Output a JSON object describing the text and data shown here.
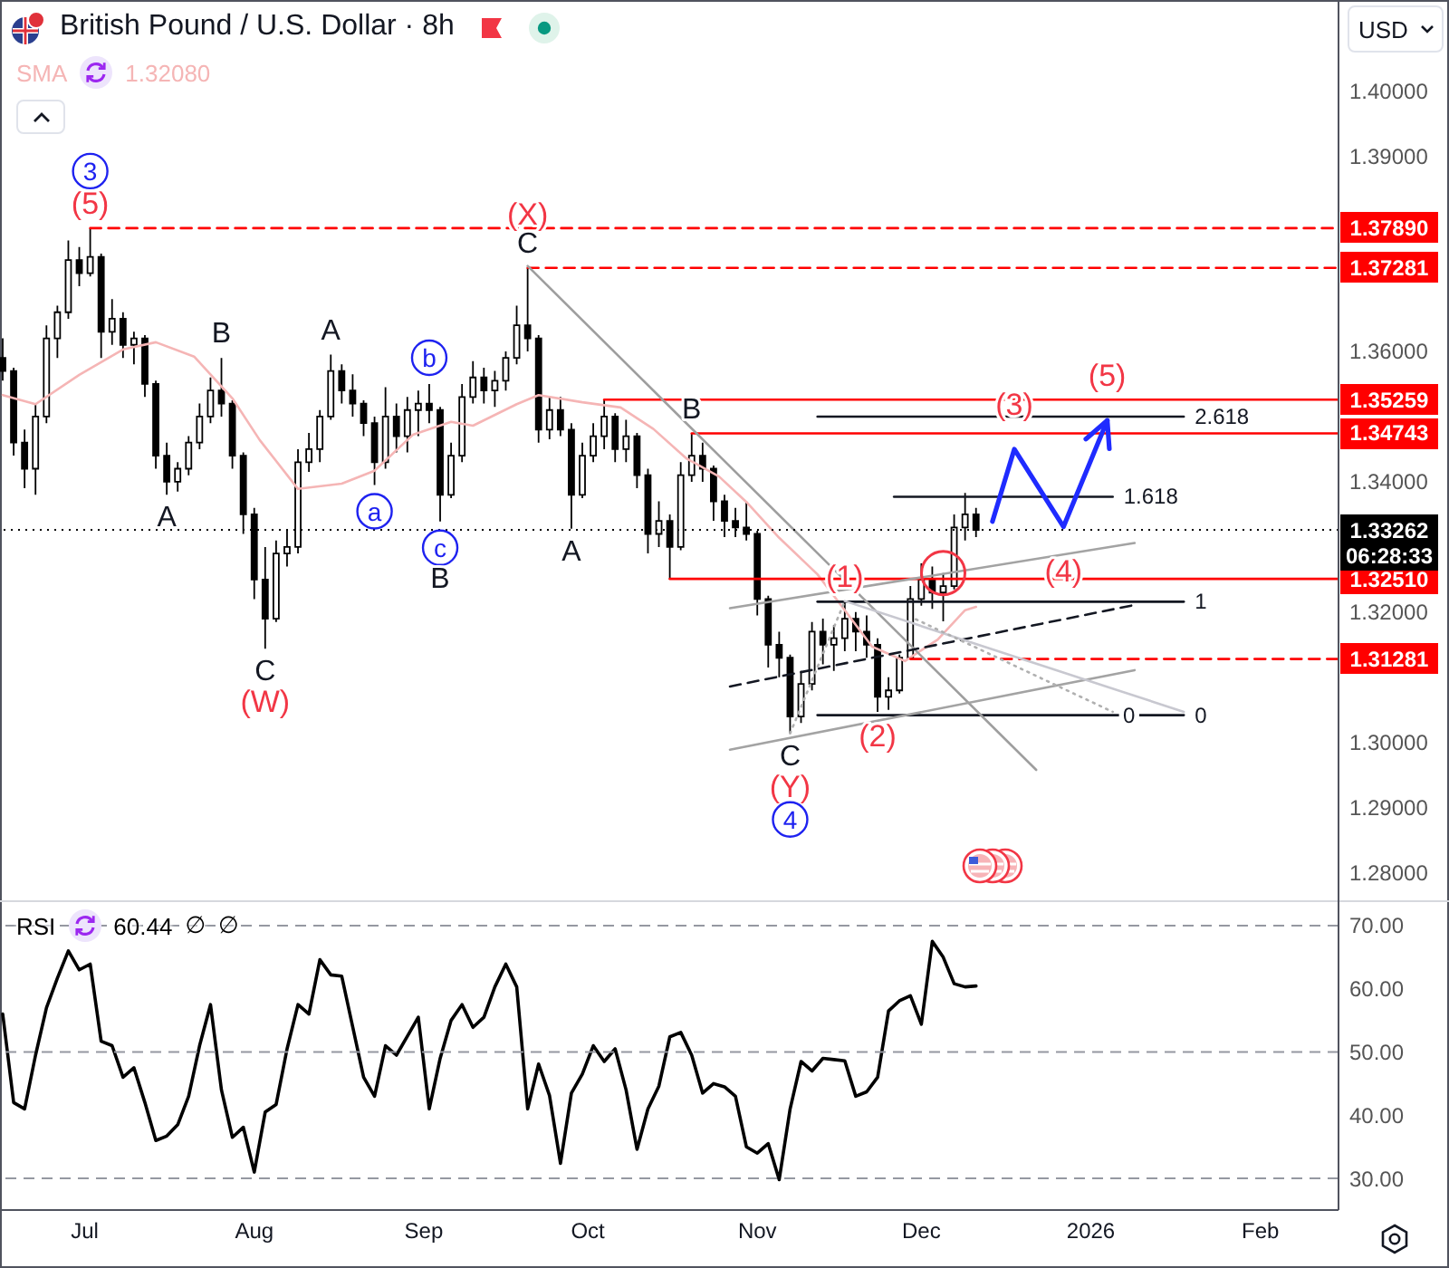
{
  "chart_data": [
    {
      "type": "candlestick",
      "title": "British Pound / U.S. Dollar · 8h",
      "ylabel": "USD",
      "color": "#000000",
      "x": [
        "2025-06-16",
        "2025-06-18",
        "2025-06-20",
        "2025-06-22",
        "2025-06-24",
        "2025-06-26",
        "2025-06-28",
        "2025-06-30",
        "2025-07-02",
        "2025-07-04",
        "2025-07-06",
        "2025-07-08",
        "2025-07-10",
        "2025-07-12",
        "2025-07-14",
        "2025-07-16",
        "2025-07-18",
        "2025-07-20",
        "2025-07-22",
        "2025-07-24",
        "2025-07-26",
        "2025-07-28",
        "2025-07-30",
        "2025-08-01",
        "2025-08-03",
        "2025-08-05",
        "2025-08-07",
        "2025-08-09",
        "2025-08-11",
        "2025-08-13",
        "2025-08-15",
        "2025-08-17",
        "2025-08-19",
        "2025-08-21",
        "2025-08-23",
        "2025-08-25",
        "2025-08-27",
        "2025-08-29",
        "2025-08-31",
        "2025-09-02",
        "2025-09-04",
        "2025-09-06",
        "2025-09-08",
        "2025-09-10",
        "2025-09-12",
        "2025-09-14",
        "2025-09-16",
        "2025-09-18",
        "2025-09-20",
        "2025-09-22",
        "2025-09-24",
        "2025-09-26",
        "2025-09-28",
        "2025-09-30",
        "2025-10-02",
        "2025-10-04",
        "2025-10-06",
        "2025-10-08",
        "2025-10-10",
        "2025-10-12",
        "2025-10-14",
        "2025-10-16",
        "2025-10-18",
        "2025-10-20",
        "2025-10-22",
        "2025-10-24",
        "2025-10-26",
        "2025-10-28",
        "2025-10-30",
        "2025-11-01",
        "2025-11-03",
        "2025-11-05",
        "2025-11-07",
        "2025-11-09",
        "2025-11-11",
        "2025-11-13",
        "2025-11-15",
        "2025-11-17",
        "2025-11-19",
        "2025-11-21",
        "2025-11-23",
        "2025-11-25",
        "2025-11-27",
        "2025-11-29",
        "2025-12-01",
        "2025-12-03",
        "2025-12-05",
        "2025-12-07",
        "2025-12-09",
        "2025-12-11"
      ],
      "ohlc": [
        [
          1.359,
          1.362,
          1.3555,
          1.357
        ],
        [
          1.357,
          1.3575,
          1.344,
          1.346
        ],
        [
          1.346,
          1.348,
          1.339,
          1.342
        ],
        [
          1.342,
          1.352,
          1.338,
          1.35
        ],
        [
          1.35,
          1.364,
          1.349,
          1.362
        ],
        [
          1.362,
          1.367,
          1.359,
          1.366
        ],
        [
          1.366,
          1.377,
          1.365,
          1.374
        ],
        [
          1.374,
          1.376,
          1.37,
          1.372
        ],
        [
          1.372,
          1.3789,
          1.3715,
          1.3745
        ],
        [
          1.3745,
          1.375,
          1.359,
          1.363
        ],
        [
          1.363,
          1.368,
          1.361,
          1.365
        ],
        [
          1.365,
          1.366,
          1.359,
          1.361
        ],
        [
          1.361,
          1.363,
          1.358,
          1.362
        ],
        [
          1.362,
          1.3625,
          1.353,
          1.355
        ],
        [
          1.355,
          1.3555,
          1.342,
          1.344
        ],
        [
          1.344,
          1.346,
          1.338,
          1.34
        ],
        [
          1.34,
          1.343,
          1.3385,
          1.342
        ],
        [
          1.342,
          1.347,
          1.341,
          1.346
        ],
        [
          1.346,
          1.352,
          1.345,
          1.35
        ],
        [
          1.35,
          1.356,
          1.349,
          1.354
        ],
        [
          1.354,
          1.359,
          1.35,
          1.352
        ],
        [
          1.352,
          1.3525,
          1.342,
          1.344
        ],
        [
          1.344,
          1.3445,
          1.332,
          1.335
        ],
        [
          1.335,
          1.336,
          1.322,
          1.325
        ],
        [
          1.325,
          1.33,
          1.3144,
          1.319
        ],
        [
          1.319,
          1.331,
          1.3185,
          1.329
        ],
        [
          1.329,
          1.3325,
          1.327,
          1.33
        ],
        [
          1.33,
          1.345,
          1.329,
          1.343
        ],
        [
          1.343,
          1.3475,
          1.3415,
          1.345
        ],
        [
          1.345,
          1.351,
          1.343,
          1.35
        ],
        [
          1.35,
          1.3595,
          1.3495,
          1.357
        ],
        [
          1.357,
          1.358,
          1.352,
          1.354
        ],
        [
          1.354,
          1.3565,
          1.35,
          1.352
        ],
        [
          1.352,
          1.3525,
          1.347,
          1.349
        ],
        [
          1.349,
          1.35,
          1.3395,
          1.343
        ],
        [
          1.343,
          1.3545,
          1.342,
          1.35
        ],
        [
          1.35,
          1.352,
          1.3445,
          1.347
        ],
        [
          1.347,
          1.353,
          1.3445,
          1.351
        ],
        [
          1.351,
          1.354,
          1.347,
          1.352
        ],
        [
          1.352,
          1.355,
          1.349,
          1.351
        ],
        [
          1.351,
          1.3515,
          1.3339,
          1.338
        ],
        [
          1.338,
          1.346,
          1.3375,
          1.344
        ],
        [
          1.344,
          1.355,
          1.343,
          1.353
        ],
        [
          1.353,
          1.3585,
          1.352,
          1.356
        ],
        [
          1.356,
          1.3575,
          1.352,
          1.354
        ],
        [
          1.354,
          1.357,
          1.3515,
          1.3555
        ],
        [
          1.3555,
          1.36,
          1.354,
          1.359
        ],
        [
          1.359,
          1.367,
          1.358,
          1.364
        ],
        [
          1.364,
          1.3728,
          1.36,
          1.362
        ],
        [
          1.362,
          1.3625,
          1.346,
          1.348
        ],
        [
          1.348,
          1.353,
          1.3465,
          1.351
        ],
        [
          1.351,
          1.353,
          1.347,
          1.348
        ],
        [
          1.348,
          1.349,
          1.3328,
          1.338
        ],
        [
          1.338,
          1.346,
          1.3375,
          1.344
        ],
        [
          1.344,
          1.349,
          1.343,
          1.347
        ],
        [
          1.347,
          1.3526,
          1.345,
          1.35
        ],
        [
          1.35,
          1.3505,
          1.343,
          1.345
        ],
        [
          1.345,
          1.3495,
          1.343,
          1.347
        ],
        [
          1.347,
          1.3475,
          1.339,
          1.341
        ],
        [
          1.341,
          1.342,
          1.329,
          1.332
        ],
        [
          1.332,
          1.337,
          1.33,
          1.334
        ],
        [
          1.334,
          1.335,
          1.3251,
          1.33
        ],
        [
          1.33,
          1.343,
          1.3295,
          1.341
        ],
        [
          1.341,
          1.3474,
          1.34,
          1.344
        ],
        [
          1.344,
          1.346,
          1.34,
          1.342
        ],
        [
          1.342,
          1.3425,
          1.334,
          1.337
        ],
        [
          1.337,
          1.338,
          1.3315,
          1.334
        ],
        [
          1.334,
          1.336,
          1.3315,
          1.333
        ],
        [
          1.333,
          1.337,
          1.331,
          1.332
        ],
        [
          1.332,
          1.3325,
          1.3195,
          1.322
        ],
        [
          1.322,
          1.3225,
          1.3115,
          1.315
        ],
        [
          1.315,
          1.317,
          1.31,
          1.313
        ],
        [
          1.313,
          1.3135,
          1.3014,
          1.304
        ],
        [
          1.304,
          1.311,
          1.303,
          1.309
        ],
        [
          1.309,
          1.3185,
          1.308,
          1.317
        ],
        [
          1.317,
          1.319,
          1.312,
          1.315
        ],
        [
          1.315,
          1.318,
          1.311,
          1.316
        ],
        [
          1.316,
          1.3217,
          1.314,
          1.319
        ],
        [
          1.319,
          1.32,
          1.314,
          1.317
        ],
        [
          1.317,
          1.3195,
          1.313,
          1.315
        ],
        [
          1.315,
          1.316,
          1.3047,
          1.307
        ],
        [
          1.307,
          1.31,
          1.305,
          1.308
        ],
        [
          1.308,
          1.3135,
          1.3075,
          1.313
        ],
        [
          1.313,
          1.324,
          1.3128,
          1.322
        ],
        [
          1.322,
          1.3275,
          1.321,
          1.325
        ],
        [
          1.325,
          1.327,
          1.3205,
          1.323
        ],
        [
          1.323,
          1.326,
          1.3186,
          1.324
        ],
        [
          1.324,
          1.335,
          1.3235,
          1.333
        ],
        [
          1.333,
          1.3383,
          1.331,
          1.335
        ],
        [
          1.335,
          1.336,
          1.3315,
          1.33262
        ]
      ],
      "series": [
        {
          "type": "line",
          "name": "SMA",
          "color": "#f5b5b5",
          "x": [
            "2025-06-16",
            "2025-06-22",
            "2025-06-30",
            "2025-07-08",
            "2025-07-14",
            "2025-07-21",
            "2025-07-28",
            "2025-08-02",
            "2025-08-09",
            "2025-08-17",
            "2025-08-23",
            "2025-08-30",
            "2025-09-06",
            "2025-09-10",
            "2025-09-18",
            "2025-09-22",
            "2025-09-30",
            "2025-10-07",
            "2025-10-13",
            "2025-10-19",
            "2025-10-25",
            "2025-10-30",
            "2025-11-05",
            "2025-11-12",
            "2025-11-17",
            "2025-11-22",
            "2025-11-28",
            "2025-12-04",
            "2025-12-09",
            "2025-12-11"
          ],
          "values": [
            1.3533,
            1.3519,
            1.3564,
            1.3603,
            1.3614,
            1.3592,
            1.3528,
            1.3464,
            1.3389,
            1.3397,
            1.3417,
            1.3472,
            1.3492,
            1.3486,
            1.3519,
            1.3533,
            1.3522,
            1.3514,
            1.3481,
            1.3436,
            1.3408,
            1.3369,
            1.3314,
            1.3258,
            1.3203,
            1.3147,
            1.3125,
            1.3158,
            1.3203,
            1.3208
          ]
        },
        {
          "type": "line",
          "color": "#ff0000",
          "line_style": "dashed",
          "x": [
            "2025-07-02",
            "2026-02-15T07:00"
          ],
          "values": [
            1.3789,
            1.3789
          ],
          "value_labels": [
            null,
            "1.37890"
          ]
        },
        {
          "type": "line",
          "color": "#ff0000",
          "line_style": "dashed",
          "x": [
            "2025-09-20",
            "2026-02-15T07:00"
          ],
          "values": [
            1.37281,
            1.37281
          ],
          "value_labels": [
            null,
            "1.37281"
          ]
        },
        {
          "type": "line",
          "color": "#ff0000",
          "x": [
            "2025-10-04",
            "2026-02-15T07:00"
          ],
          "values": [
            1.35259,
            1.35259
          ],
          "value_labels": [
            null,
            "1.35259"
          ]
        },
        {
          "type": "line",
          "color": "#ff0000",
          "x": [
            "2025-10-20",
            "2026-02-15T07:00"
          ],
          "values": [
            1.34743,
            1.34743
          ],
          "value_labels": [
            null,
            "1.34743"
          ]
        },
        {
          "type": "line",
          "color": "#ff0000",
          "x": [
            "2025-10-16",
            "2026-02-15T07:00"
          ],
          "values": [
            1.3251,
            1.3251
          ],
          "value_labels": [
            null,
            "1.32510"
          ]
        },
        {
          "type": "line",
          "color": "#ff0000",
          "line_style": "dashed",
          "x": [
            "2025-11-29",
            "2026-02-15T07:00"
          ],
          "values": [
            1.31281,
            1.31281
          ],
          "value_labels": [
            null,
            "1.31281"
          ]
        },
        {
          "type": "line",
          "color": "#131722",
          "x": [
            "2025-11-12",
            "2026-01-18"
          ],
          "values": [
            1.35,
            1.35
          ]
        },
        {
          "type": "line",
          "color": "#131722",
          "x": [
            "2025-11-26",
            "2026-01-05"
          ],
          "values": [
            1.3377,
            1.3377
          ]
        },
        {
          "type": "line",
          "color": "#131722",
          "x": [
            "2025-11-12",
            "2026-01-18"
          ],
          "values": [
            1.3216,
            1.3216
          ]
        },
        {
          "type": "line",
          "color": "#131722",
          "x": [
            "2025-11-12",
            "2026-01-18"
          ],
          "values": [
            1.3042,
            1.3042
          ]
        },
        {
          "type": "line",
          "color": "#9e9e9e",
          "x": [
            "2025-09-20",
            "2025-12-22"
          ],
          "values": [
            1.3731,
            1.2958
          ]
        },
        {
          "type": "line",
          "color": "#a3a3a3",
          "x": [
            "2025-10-27",
            "2026-01-09"
          ],
          "values": [
            1.3206,
            1.3306
          ]
        },
        {
          "type": "line",
          "color": "#a3a3a3",
          "x": [
            "2025-10-27",
            "2026-01-09"
          ],
          "values": [
            1.2989,
            1.3111
          ]
        },
        {
          "type": "line",
          "color": "#131722",
          "line_style": "dashed",
          "x": [
            "2025-10-27",
            "2026-01-09"
          ],
          "values": [
            1.3086,
            1.3211
          ]
        },
        {
          "type": "line",
          "color": "#c8c8d0",
          "x": [
            "2025-11-17",
            "2026-01-18"
          ],
          "values": [
            1.3217,
            1.3047
          ]
        },
        {
          "type": "line",
          "color": "#b0b0b0",
          "line_style": "dotted",
          "x": [
            "2025-11-07",
            "2025-11-17"
          ],
          "values": [
            1.3014,
            1.3217
          ]
        },
        {
          "type": "line",
          "color": "#b0b0b0",
          "line_style": "dotted",
          "x": [
            "2025-11-30",
            "2026-01-05"
          ],
          "values": [
            1.3189,
            1.3047
          ]
        },
        {
          "type": "line",
          "color": "#1f2bff",
          "x": [
            "2025-12-14",
            "2025-12-18",
            "2025-12-27",
            "2026-01-04"
          ],
          "values": [
            1.3339,
            1.345,
            1.3331,
            1.3494
          ]
        }
      ],
      "xlim": [
        "2025-06-15T12:00",
        "2026-02-15T07:00"
      ],
      "ylim": [
        1.2758,
        1.4139
      ],
      "yticks": [
        {
          "value": 1.28,
          "label": "1.28000"
        },
        {
          "value": 1.29,
          "label": "1.29000"
        },
        {
          "value": 1.3,
          "label": "1.30000"
        },
        {
          "value": 1.32,
          "label": "1.32000"
        },
        {
          "value": 1.34,
          "label": "1.34000"
        },
        {
          "value": 1.36,
          "label": "1.36000"
        },
        {
          "value": 1.39,
          "label": "1.39000"
        },
        {
          "value": 1.4,
          "label": "1.40000"
        }
      ],
      "ref_lines": [
        {
          "axis": "y",
          "value": 1.33262,
          "label": "1.33262\n06:28:33",
          "color": "#000000",
          "line_style": "dotted"
        }
      ],
      "legend": "top left",
      "tick_labels": "y",
      "annotations": [
        {
          "text": "(5)",
          "x": "2025-07-02",
          "y": 1.3789
        },
        {
          "text": "3",
          "x": "2025-07-02",
          "y": 1.3789
        },
        {
          "text": "C",
          "x": "2025-09-20",
          "y": 1.3728
        },
        {
          "text": "(X)",
          "x": "2025-09-20",
          "y": 1.3728
        },
        {
          "text": "C",
          "x": "2025-08-03",
          "y": 1.3144
        },
        {
          "text": "(W)",
          "x": "2025-08-03",
          "y": 1.3144
        },
        {
          "text": "C",
          "x": "2025-11-07",
          "y": 1.3014
        },
        {
          "text": "(Y)",
          "x": "2025-11-07",
          "y": 1.3014
        },
        {
          "text": "4",
          "x": "2025-11-07",
          "y": 1.3014
        },
        {
          "text": "B",
          "x": "2025-07-26",
          "y": 1.359
        },
        {
          "text": "A",
          "x": "2025-08-15",
          "y": 1.3595
        },
        {
          "text": "A",
          "x": "2025-07-16",
          "y": 1.338
        },
        {
          "text": "a",
          "x": "2025-08-23",
          "y": 1.3395
        },
        {
          "text": "b",
          "x": "2025-09-02",
          "y": 1.355
        },
        {
          "text": "c",
          "x": "2025-09-04",
          "y": 1.3339
        },
        {
          "text": "B",
          "x": "2025-09-04",
          "y": 1.3339
        },
        {
          "text": "A",
          "x": "2025-09-28",
          "y": 1.3328
        },
        {
          "text": "B",
          "x": "2025-10-20",
          "y": 1.3474
        },
        {
          "text": "(1)",
          "x": "2025-11-17",
          "y": 1.3217
        },
        {
          "text": "(2)",
          "x": "2025-11-23",
          "y": 1.3047
        },
        {
          "text": "(3)",
          "x": "2025-12-18",
          "y": 1.345
        },
        {
          "text": "(4)",
          "x": "2025-12-27",
          "y": 1.3331
        },
        {
          "text": "(5)",
          "x": "2026-01-04",
          "y": 1.3494
        },
        {
          "text": "2.618",
          "x": "2026-01-18",
          "y": 1.35
        },
        {
          "text": "1.618",
          "x": "2026-01-05",
          "y": 1.3377
        },
        {
          "text": "1",
          "x": "2026-01-18",
          "y": 1.3216
        },
        {
          "text": "0",
          "x": "2026-01-08",
          "y": 1.3042
        },
        {
          "text": "0",
          "x": "2026-01-18",
          "y": 1.3042
        },
        "1.32080"
      ]
    },
    {
      "type": "line",
      "x": [
        "2025-06-16",
        "2025-06-18",
        "2025-06-20",
        "2025-06-22",
        "2025-06-24",
        "2025-06-26",
        "2025-06-28",
        "2025-06-30",
        "2025-07-02",
        "2025-07-04",
        "2025-07-06",
        "2025-07-08",
        "2025-07-10",
        "2025-07-12",
        "2025-07-14",
        "2025-07-16",
        "2025-07-18",
        "2025-07-20",
        "2025-07-22",
        "2025-07-24",
        "2025-07-26",
        "2025-07-28",
        "2025-07-30",
        "2025-08-01",
        "2025-08-03",
        "2025-08-05",
        "2025-08-07",
        "2025-08-09",
        "2025-08-11",
        "2025-08-13",
        "2025-08-15",
        "2025-08-17",
        "2025-08-19",
        "2025-08-21",
        "2025-08-23",
        "2025-08-25",
        "2025-08-27",
        "2025-08-29",
        "2025-08-31",
        "2025-09-02",
        "2025-09-04",
        "2025-09-06",
        "2025-09-08",
        "2025-09-10",
        "2025-09-12",
        "2025-09-14",
        "2025-09-16",
        "2025-09-18",
        "2025-09-20",
        "2025-09-22",
        "2025-09-24",
        "2025-09-26",
        "2025-09-28",
        "2025-09-30",
        "2025-10-02",
        "2025-10-04",
        "2025-10-06",
        "2025-10-08",
        "2025-10-10",
        "2025-10-12",
        "2025-10-14",
        "2025-10-16",
        "2025-10-18",
        "2025-10-20",
        "2025-10-22",
        "2025-10-24",
        "2025-10-26",
        "2025-10-28",
        "2025-10-30",
        "2025-11-01",
        "2025-11-03",
        "2025-11-05",
        "2025-11-07",
        "2025-11-09",
        "2025-11-11",
        "2025-11-13",
        "2025-11-15",
        "2025-11-17",
        "2025-11-19",
        "2025-11-21",
        "2025-11-23",
        "2025-11-25",
        "2025-11-27",
        "2025-11-29",
        "2025-12-01",
        "2025-12-03",
        "2025-12-05",
        "2025-12-07",
        "2025-12-09",
        "2025-12-11"
      ],
      "series": [
        {
          "name": "RSI",
          "color": "#000000",
          "values": [
            56,
            42,
            41,
            49.5,
            57,
            61.7,
            66,
            63,
            63.9,
            51.7,
            51,
            46,
            47.5,
            42,
            36,
            36.7,
            38.5,
            43,
            51,
            57.5,
            44,
            36.5,
            38.1,
            31,
            40.5,
            41.7,
            50.5,
            57.5,
            56,
            64.6,
            62.2,
            62,
            54,
            46,
            43,
            51,
            49.5,
            52.5,
            55.5,
            41,
            49,
            55,
            57.5,
            53.9,
            55.5,
            60.3,
            63.9,
            60.3,
            41,
            48.1,
            43.1,
            32.4,
            43.5,
            46.5,
            51,
            48.5,
            50.5,
            44,
            34.6,
            41,
            44.6,
            52.4,
            53.1,
            49.5,
            43.5,
            45,
            44.5,
            43,
            35,
            34,
            35.5,
            29.8,
            41,
            48.5,
            47,
            49,
            48.8,
            48.6,
            43,
            43.7,
            46,
            56.5,
            58.1,
            58.9,
            54.4,
            67.5,
            65,
            60.8,
            60.3,
            60.44
          ]
        }
      ],
      "xlim": [
        "2025-06-15T12:00",
        "2026-02-15T07:00"
      ],
      "xticks": [
        {
          "value": "2025-07-01",
          "label": "Jul"
        },
        {
          "value": "2025-08-01",
          "label": "Aug"
        },
        {
          "value": "2025-09-01",
          "label": "Sep"
        },
        {
          "value": "2025-10-01",
          "label": "Oct"
        },
        {
          "value": "2025-11-01",
          "label": "Nov"
        },
        {
          "value": "2025-12-01",
          "label": "Dec"
        },
        {
          "value": "2026-01-01",
          "label": "2026"
        },
        {
          "value": "2026-02-01",
          "label": "Feb"
        }
      ],
      "ylim": [
        25,
        74
      ],
      "yticks": [
        {
          "value": 30,
          "label": "30.00"
        },
        {
          "value": 40,
          "label": "40.00"
        },
        {
          "value": 50,
          "label": "50.00"
        },
        {
          "value": 60,
          "label": "60.00"
        },
        {
          "value": 70,
          "label": "70.00"
        }
      ],
      "ref_lines": [
        {
          "axis": "y",
          "value": 70,
          "color": "#9598a1",
          "line_style": "dashed"
        },
        {
          "axis": "y",
          "value": 50,
          "color": "#9598a1",
          "line_style": "dashed"
        },
        {
          "axis": "y",
          "value": 30,
          "color": "#9598a1",
          "line_style": "dashed"
        }
      ],
      "legend": "top left",
      "annotations": [
        "60.44",
        "∅",
        "∅"
      ]
    }
  ]
}
